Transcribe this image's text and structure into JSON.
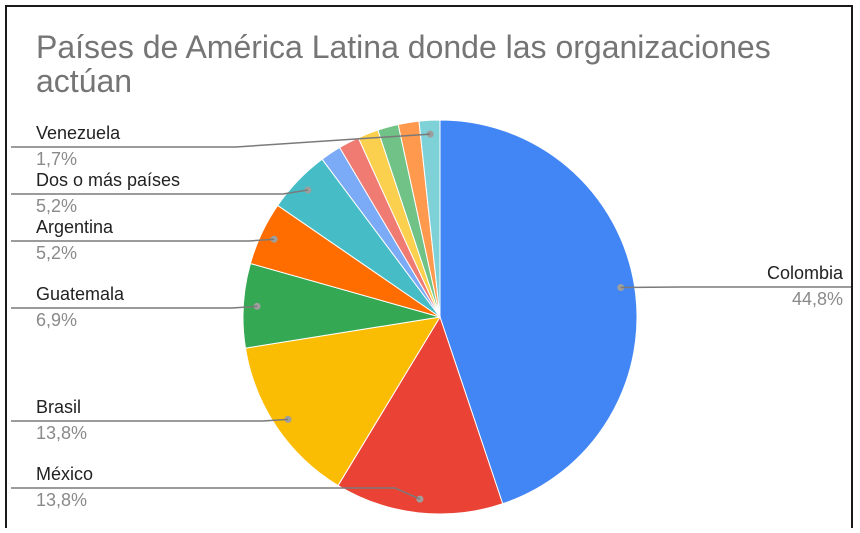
{
  "chart_data": {
    "type": "pie",
    "title": "Países de América Latina donde las organizaciones actúan",
    "slices": [
      {
        "label": "Colombia",
        "value": 44.8,
        "display": "44,8%",
        "color": "#4285F4",
        "labeled": true
      },
      {
        "label": "México",
        "value": 13.8,
        "display": "13,8%",
        "color": "#EA4335",
        "labeled": true
      },
      {
        "label": "Brasil",
        "value": 13.8,
        "display": "13,8%",
        "color": "#FBBC04",
        "labeled": true
      },
      {
        "label": "Guatemala",
        "value": 6.9,
        "display": "6,9%",
        "color": "#34A853",
        "labeled": true
      },
      {
        "label": "Argentina",
        "value": 5.2,
        "display": "5,2%",
        "color": "#FF6D01",
        "labeled": true
      },
      {
        "label": "Dos o más países",
        "value": 5.2,
        "display": "5,2%",
        "color": "#46BDC6",
        "labeled": true
      },
      {
        "label": "",
        "value": 1.7,
        "display": "",
        "color": "#7BAAF7",
        "labeled": false
      },
      {
        "label": "",
        "value": 1.7,
        "display": "",
        "color": "#F07B72",
        "labeled": false
      },
      {
        "label": "",
        "value": 1.7,
        "display": "",
        "color": "#FCD04F",
        "labeled": false
      },
      {
        "label": "",
        "value": 1.7,
        "display": "",
        "color": "#71C287",
        "labeled": false
      },
      {
        "label": "",
        "value": 1.7,
        "display": "",
        "color": "#FF994D",
        "labeled": false
      },
      {
        "label": "Venezuela",
        "value": 1.7,
        "display": "1,7%",
        "color": "#7ED1D7",
        "labeled": true
      }
    ]
  }
}
